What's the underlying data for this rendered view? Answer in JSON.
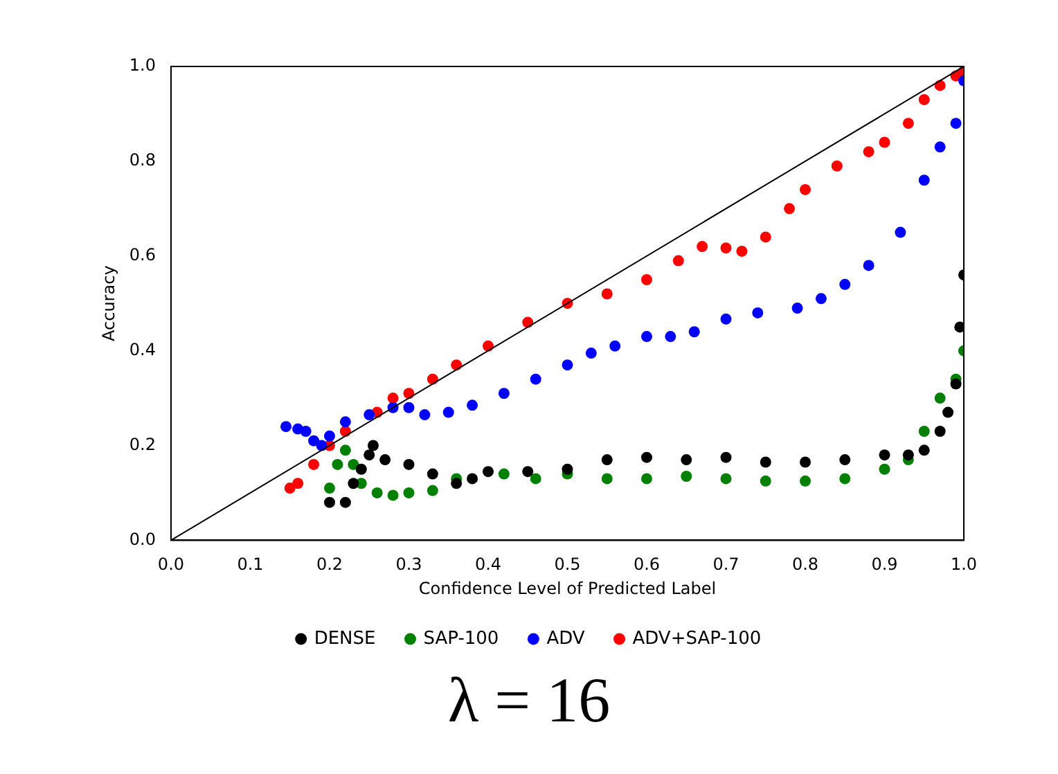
{
  "chart_data": {
    "type": "scatter",
    "title": "λ = 16",
    "xlabel": "Confidence Level of Predicted Label",
    "ylabel": "Accuracy",
    "xlim": [
      0,
      1
    ],
    "ylim": [
      0,
      1
    ],
    "xticks": [
      {
        "value": 0,
        "label": "0.0"
      },
      0.1,
      0.2,
      0.3,
      0.4,
      0.5,
      0.6,
      0.7,
      0.8,
      0.9,
      {
        "value": 1,
        "label": "1.0"
      }
    ],
    "yticks": [
      {
        "value": 0,
        "label": "0.0"
      },
      0.2,
      0.4,
      0.6,
      0.8,
      {
        "value": 1,
        "label": "1.0"
      }
    ],
    "grid": false,
    "legend": "bottom",
    "marker": "circle",
    "series": [
      {
        "name": "DENSE",
        "color": "#000000",
        "x": [
          0.2,
          0.22,
          0.23,
          0.24,
          0.25,
          0.255,
          0.27,
          0.3,
          0.33,
          0.36,
          0.38,
          0.4,
          0.45,
          0.5,
          0.55,
          0.6,
          0.65,
          0.7,
          0.75,
          0.8,
          0.85,
          0.9,
          0.93,
          0.95,
          0.97,
          0.98,
          0.99,
          0.995,
          1.0
        ],
        "values": [
          0.08,
          0.08,
          0.12,
          0.15,
          0.18,
          0.2,
          0.17,
          0.16,
          0.14,
          0.12,
          0.13,
          0.145,
          0.145,
          0.15,
          0.17,
          0.175,
          0.17,
          0.175,
          0.165,
          0.165,
          0.17,
          0.18,
          0.18,
          0.19,
          0.23,
          0.27,
          0.33,
          0.45,
          0.56
        ]
      },
      {
        "name": "SAP-100",
        "color": "#008000",
        "x": [
          0.2,
          0.21,
          0.22,
          0.23,
          0.24,
          0.26,
          0.28,
          0.3,
          0.33,
          0.36,
          0.42,
          0.46,
          0.5,
          0.55,
          0.6,
          0.65,
          0.7,
          0.75,
          0.8,
          0.85,
          0.9,
          0.93,
          0.95,
          0.97,
          0.99,
          1.0
        ],
        "values": [
          0.11,
          0.16,
          0.19,
          0.16,
          0.12,
          0.1,
          0.095,
          0.1,
          0.105,
          0.13,
          0.14,
          0.13,
          0.14,
          0.13,
          0.13,
          0.135,
          0.13,
          0.125,
          0.125,
          0.13,
          0.15,
          0.17,
          0.23,
          0.3,
          0.34,
          0.4
        ]
      },
      {
        "name": "ADV",
        "color": "#0000ff",
        "x": [
          0.145,
          0.16,
          0.17,
          0.18,
          0.19,
          0.2,
          0.22,
          0.25,
          0.28,
          0.3,
          0.32,
          0.35,
          0.38,
          0.42,
          0.46,
          0.5,
          0.53,
          0.56,
          0.6,
          0.63,
          0.66,
          0.7,
          0.74,
          0.79,
          0.82,
          0.85,
          0.88,
          0.92,
          0.95,
          0.97,
          0.99,
          1.0
        ],
        "values": [
          0.24,
          0.235,
          0.23,
          0.21,
          0.2,
          0.22,
          0.25,
          0.265,
          0.28,
          0.28,
          0.265,
          0.27,
          0.285,
          0.31,
          0.34,
          0.37,
          0.395,
          0.41,
          0.43,
          0.43,
          0.44,
          0.467,
          0.48,
          0.49,
          0.51,
          0.54,
          0.58,
          0.65,
          0.76,
          0.83,
          0.88,
          0.97
        ]
      },
      {
        "name": "ADV+SAP-100",
        "color": "#ff0000",
        "x": [
          0.15,
          0.16,
          0.18,
          0.2,
          0.22,
          0.26,
          0.28,
          0.3,
          0.33,
          0.36,
          0.4,
          0.45,
          0.5,
          0.55,
          0.6,
          0.64,
          0.67,
          0.7,
          0.72,
          0.75,
          0.78,
          0.8,
          0.84,
          0.88,
          0.9,
          0.93,
          0.95,
          0.97,
          0.99,
          1.0
        ],
        "values": [
          0.11,
          0.12,
          0.16,
          0.2,
          0.23,
          0.27,
          0.3,
          0.31,
          0.34,
          0.37,
          0.41,
          0.46,
          0.5,
          0.52,
          0.55,
          0.59,
          0.62,
          0.617,
          0.61,
          0.64,
          0.7,
          0.74,
          0.79,
          0.82,
          0.84,
          0.88,
          0.93,
          0.96,
          0.98,
          0.99
        ]
      },
      {
        "type": "line",
        "color": "#000000",
        "line_style": "solid",
        "marker": "none",
        "x": [
          0,
          1
        ],
        "values": [
          0,
          1
        ]
      }
    ]
  }
}
